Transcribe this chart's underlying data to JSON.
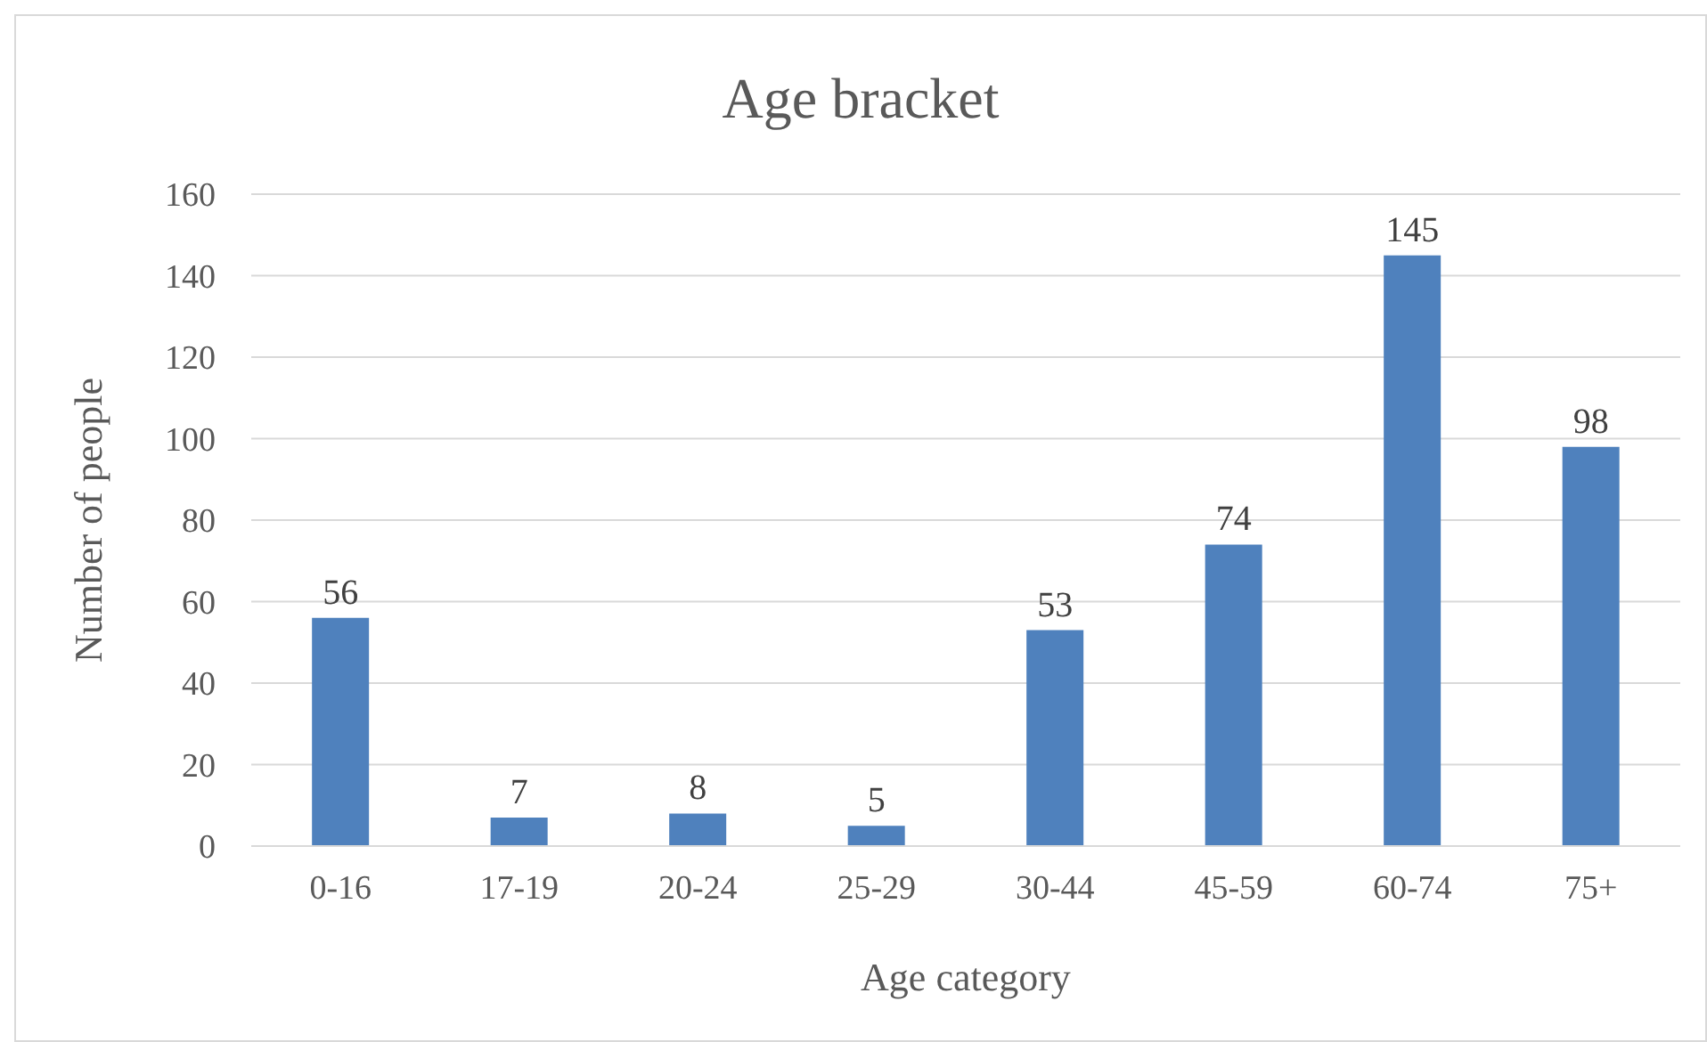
{
  "chart_data": {
    "type": "bar",
    "title": "Age bracket",
    "xlabel": "Age category",
    "ylabel": "Number of people",
    "categories": [
      "0-16",
      "17-19",
      "20-24",
      "25-29",
      "30-44",
      "45-59",
      "60-74",
      "75+"
    ],
    "values": [
      56,
      7,
      8,
      5,
      53,
      74,
      145,
      98
    ],
    "color": "#4f81bd",
    "ylim": [
      0,
      160
    ],
    "yticks": [
      0,
      20,
      40,
      60,
      80,
      100,
      120,
      140,
      160
    ],
    "grid": "y",
    "data_labels": true,
    "legend": false
  }
}
